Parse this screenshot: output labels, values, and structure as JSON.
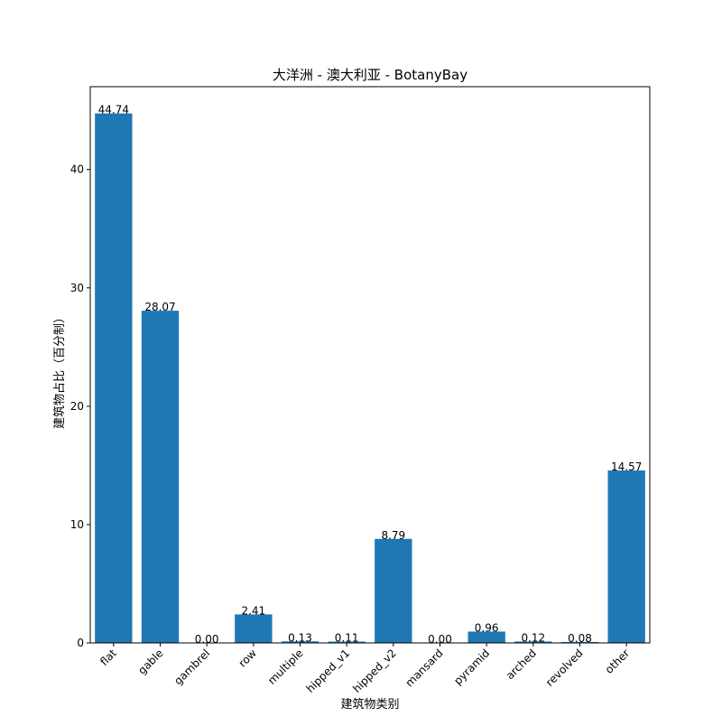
{
  "chart_data": {
    "type": "bar",
    "title": "大洋洲 - 澳大利亚 - BotanyBay",
    "xlabel": "建筑物类别",
    "ylabel": "建筑物占比（百分制）",
    "categories": [
      "flat",
      "gable",
      "gambrel",
      "row",
      "multiple",
      "hipped_v1",
      "hipped_v2",
      "mansard",
      "pyramid",
      "arched",
      "revolved",
      "other"
    ],
    "values": [
      44.74,
      28.07,
      0.0,
      2.41,
      0.13,
      0.11,
      8.79,
      0.0,
      0.96,
      0.12,
      0.08,
      14.57
    ],
    "value_labels": [
      "44.74",
      "28.07",
      "0.00",
      "2.41",
      "0.13",
      "0.11",
      "8.79",
      "0.00",
      "0.96",
      "0.12",
      "0.08",
      "14.57"
    ],
    "ylim": [
      0,
      47
    ],
    "yticks": [
      0,
      10,
      20,
      30,
      40
    ],
    "grid": false,
    "bar_color": "#1f77b4"
  }
}
